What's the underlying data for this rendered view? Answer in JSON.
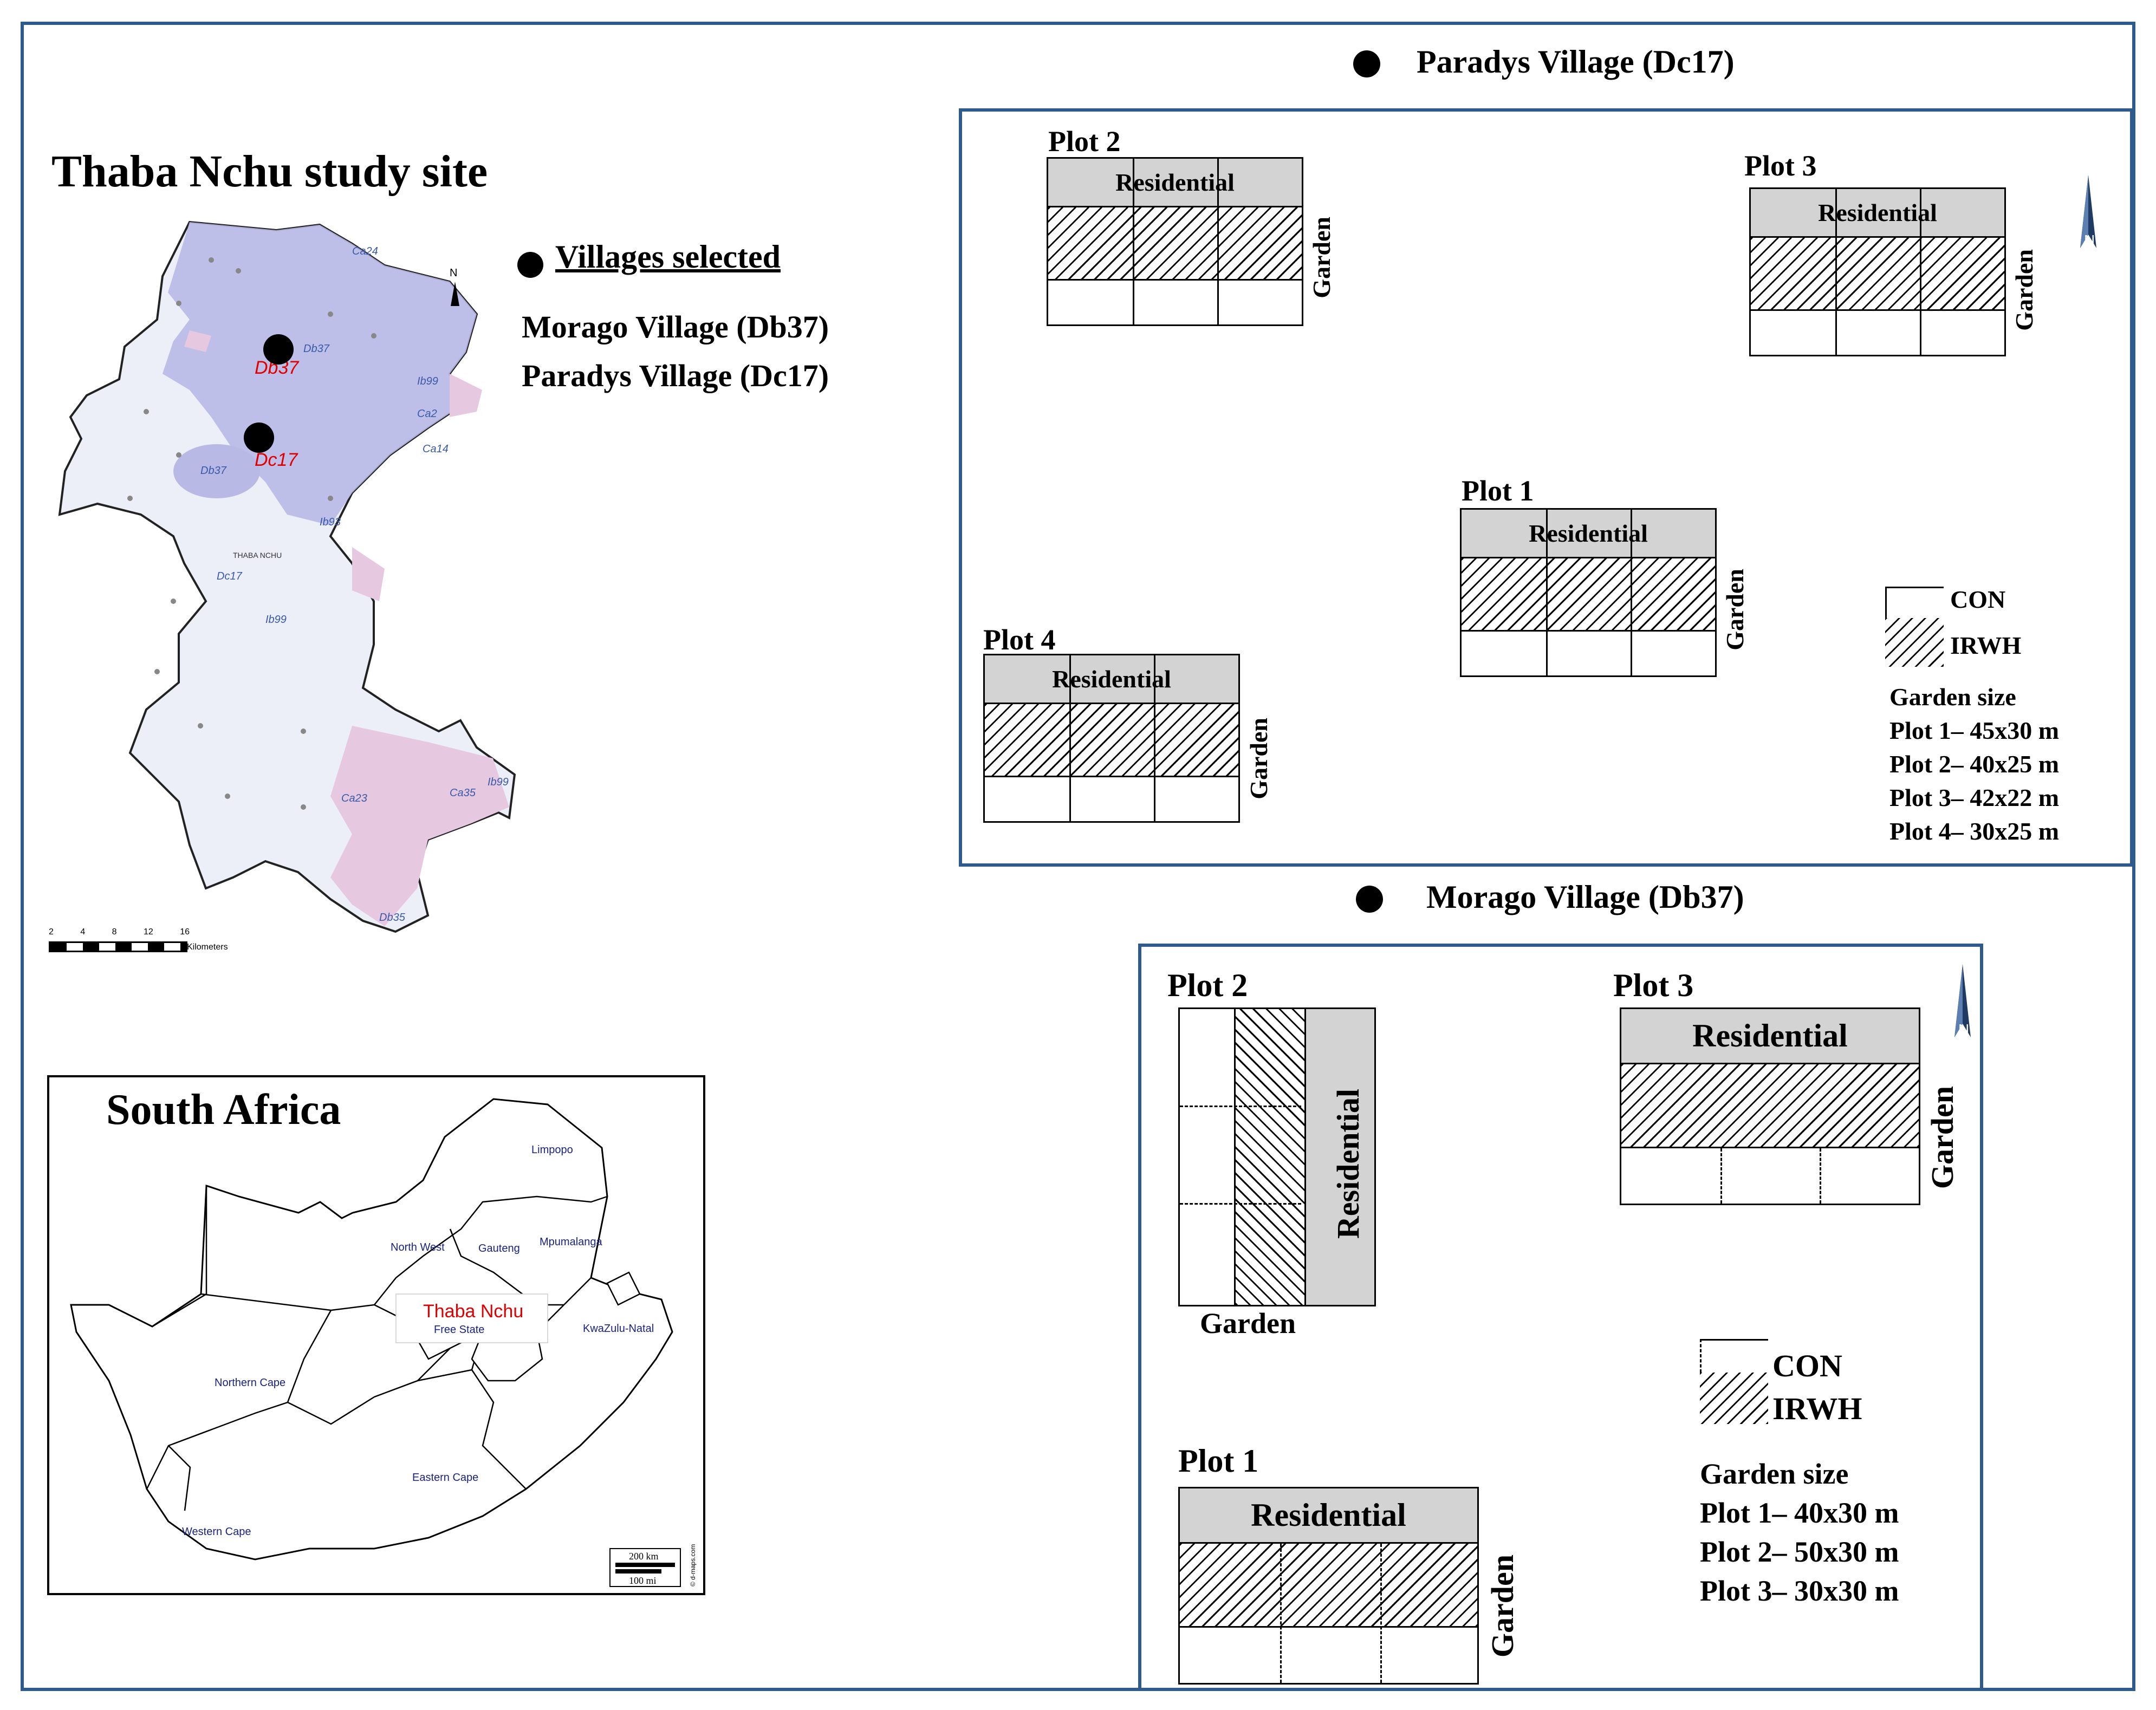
{
  "study_site": {
    "title": "Thaba Nchu study site",
    "legend_heading": "Villages selected",
    "villages": [
      "Morago Village (Db37)",
      "Paradys Village (Dc17)"
    ],
    "map_labels": {
      "db37_marker": "Db37",
      "dc17_marker": "Dc17",
      "thaba_nchu": "THABA NCHU",
      "codes": [
        "Ca24",
        "Db37",
        "Ib99",
        "Ca2",
        "Ca14",
        "Db37",
        "Ib93",
        "Dc17",
        "Ib99",
        "Ca23",
        "Ca35",
        "Ib99",
        "Db35"
      ]
    },
    "scale_text": "Kilometers",
    "scale_ticks": [
      "2",
      "4",
      "8",
      "12",
      "16"
    ]
  },
  "south_africa": {
    "title": "South Africa",
    "provinces": [
      "Limpopo",
      "North West",
      "Gauteng",
      "Mpumalanga",
      "Thaba Nchu",
      "Free State",
      "KwaZulu-Natal",
      "Northern Cape",
      "Eastern Cape",
      "Western Cape"
    ],
    "scale": [
      "200 km",
      "100 mi"
    ],
    "credit": "© d-maps.com"
  },
  "paradys": {
    "heading": "Paradys Village (Dc17)",
    "plot_labels": [
      "Plot 2",
      "Plot 3",
      "Plot 1",
      "Plot 4"
    ],
    "residential": "Residential",
    "garden": "Garden",
    "legend": {
      "con": "CON",
      "irwh": "IRWH"
    },
    "garden_size_heading": "Garden size",
    "garden_sizes": [
      "Plot 1– 45x30 m",
      "Plot 2– 40x25 m",
      "Plot 3– 42x22 m",
      "Plot 4– 30x25 m"
    ]
  },
  "morago": {
    "heading": "Morago Village (Db37)",
    "plot_labels": [
      "Plot 2",
      "Plot 3",
      "Plot 1"
    ],
    "residential": "Residential",
    "garden": "Garden",
    "legend": {
      "con": "CON",
      "irwh": "IRWH"
    },
    "garden_size_heading": "Garden size",
    "garden_sizes": [
      "Plot 1– 40x30 m",
      "Plot 2– 50x30 m",
      "Plot 3– 30x30 m"
    ]
  },
  "colors": {
    "frame": "#2e5a8c",
    "residential_band": "#d3d3d3",
    "map_fill": "#b9b9e6",
    "map_pink": "#e6c8e0",
    "accent_red": "#e00000"
  }
}
